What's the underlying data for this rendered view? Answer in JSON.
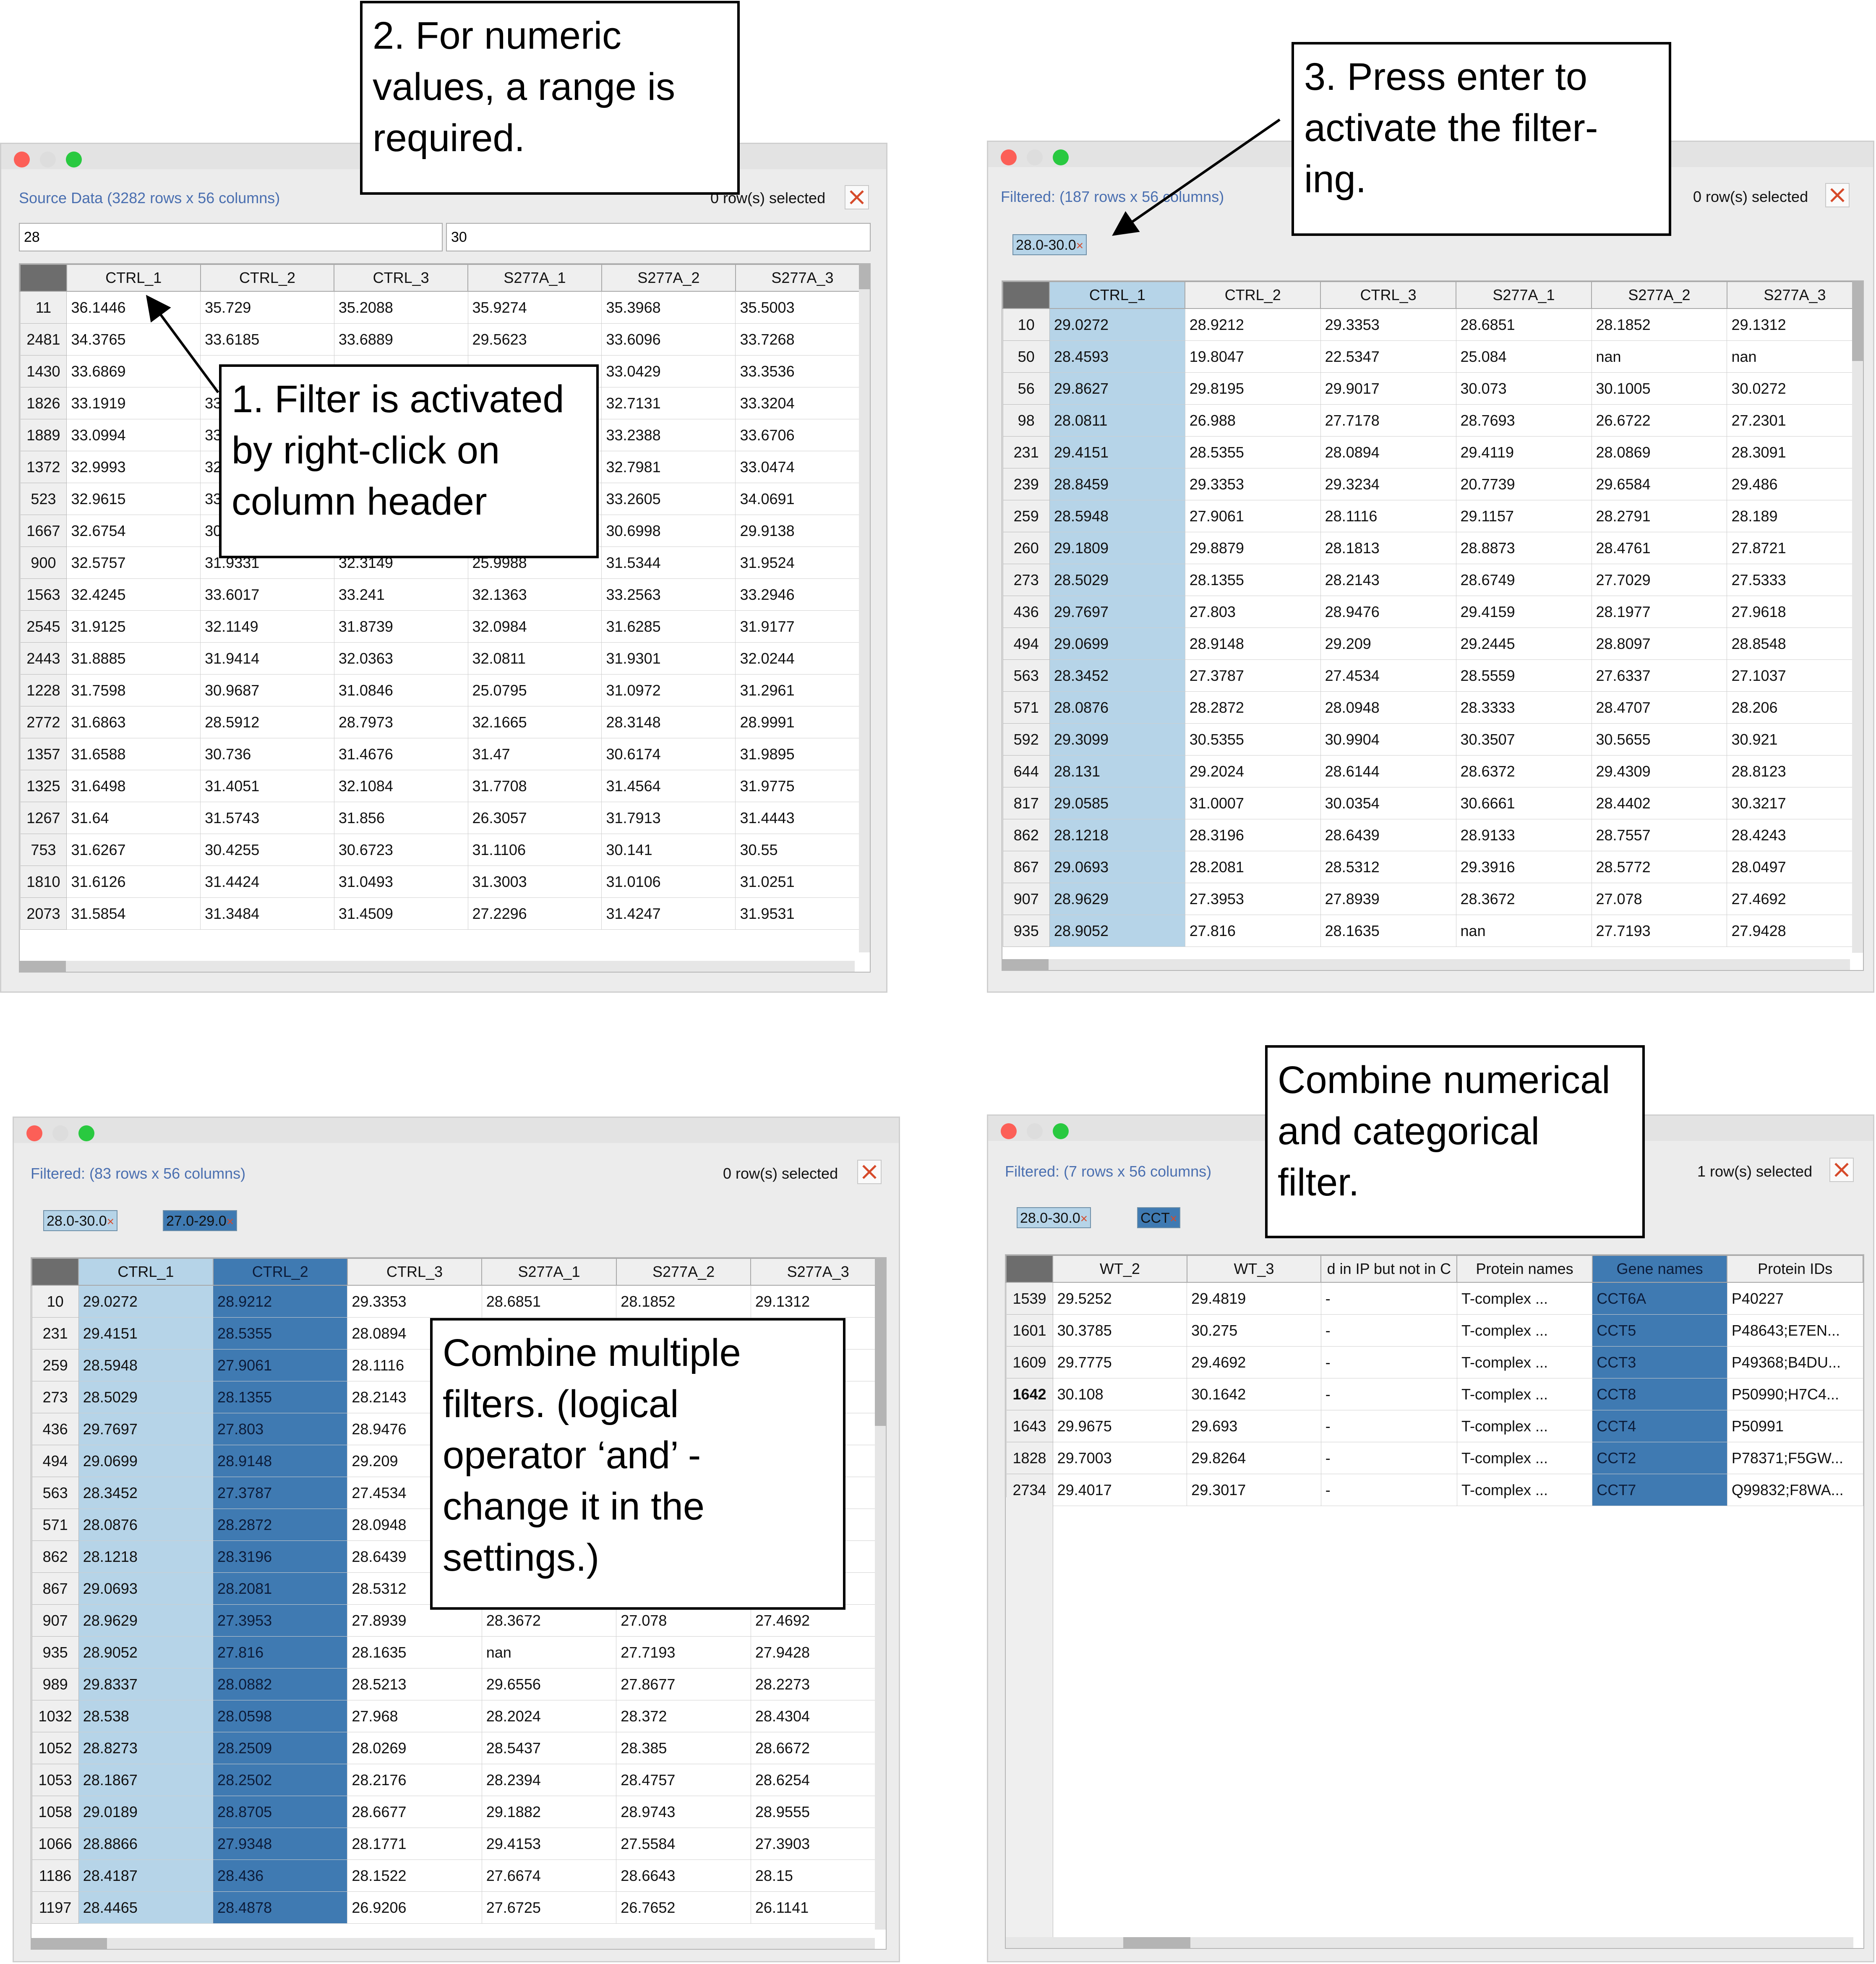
{
  "panel1": {
    "status": "Source Data (3282 rows x 56 columns)",
    "selected": "0 row(s) selected",
    "filter_min": "28",
    "filter_max": "30",
    "headers": [
      "CTRL_1",
      "CTRL_2",
      "CTRL_3",
      "S277A_1",
      "S277A_2",
      "S277A_3"
    ],
    "rows": [
      [
        "11",
        "36.1446",
        "35.729",
        "35.2088",
        "35.9274",
        "35.3968",
        "35.5003"
      ],
      [
        "2481",
        "34.3765",
        "33.6185",
        "33.6889",
        "29.5623",
        "33.6096",
        "33.7268"
      ],
      [
        "1430",
        "33.6869",
        "",
        "",
        "",
        "33.0429",
        "33.3536"
      ],
      [
        "1826",
        "33.1919",
        "33",
        "",
        "",
        "32.7131",
        "33.3204"
      ],
      [
        "1889",
        "33.0994",
        "33",
        "",
        "",
        "33.2388",
        "33.6706"
      ],
      [
        "1372",
        "32.9993",
        "32",
        "",
        "",
        "32.7981",
        "33.0474"
      ],
      [
        "523",
        "32.9615",
        "33",
        "",
        "",
        "33.2605",
        "34.0691"
      ],
      [
        "1667",
        "32.6754",
        "30",
        "",
        "",
        "30.6998",
        "29.9138"
      ],
      [
        "900",
        "32.5757",
        "31.9331",
        "32.3149",
        "25.9988",
        "31.5344",
        "31.9524"
      ],
      [
        "1563",
        "32.4245",
        "33.6017",
        "33.241",
        "32.1363",
        "33.2563",
        "33.2946"
      ],
      [
        "2545",
        "31.9125",
        "32.1149",
        "31.8739",
        "32.0984",
        "31.6285",
        "31.9177"
      ],
      [
        "2443",
        "31.8885",
        "31.9414",
        "32.0363",
        "32.0811",
        "31.9301",
        "32.0244"
      ],
      [
        "1228",
        "31.7598",
        "30.9687",
        "31.0846",
        "25.0795",
        "31.0972",
        "31.2961"
      ],
      [
        "2772",
        "31.6863",
        "28.5912",
        "28.7973",
        "32.1665",
        "28.3148",
        "28.9991"
      ],
      [
        "1357",
        "31.6588",
        "30.736",
        "31.4676",
        "31.47",
        "30.6174",
        "31.9895"
      ],
      [
        "1325",
        "31.6498",
        "31.4051",
        "32.1084",
        "31.7708",
        "31.4564",
        "31.9775"
      ],
      [
        "1267",
        "31.64",
        "31.5743",
        "31.856",
        "26.3057",
        "31.7913",
        "31.4443"
      ],
      [
        "753",
        "31.6267",
        "30.4255",
        "30.6723",
        "31.1106",
        "30.141",
        "30.55"
      ],
      [
        "1810",
        "31.6126",
        "31.4424",
        "31.0493",
        "31.3003",
        "31.0106",
        "31.0251"
      ],
      [
        "2073",
        "31.5854",
        "31.3484",
        "31.4509",
        "27.2296",
        "31.4247",
        "31.9531"
      ]
    ]
  },
  "panel2": {
    "status": "Filtered: (187 rows x 56 columns)",
    "selected": "0 row(s) selected",
    "chips": [
      "28.0-30.0"
    ],
    "headers": [
      "CTRL_1",
      "CTRL_2",
      "CTRL_3",
      "S277A_1",
      "S277A_2",
      "S277A_3"
    ],
    "rows": [
      [
        "10",
        "29.0272",
        "28.9212",
        "29.3353",
        "28.6851",
        "28.1852",
        "29.1312"
      ],
      [
        "50",
        "28.4593",
        "19.8047",
        "22.5347",
        "25.084",
        "nan",
        "nan"
      ],
      [
        "56",
        "29.8627",
        "29.8195",
        "29.9017",
        "30.073",
        "30.1005",
        "30.0272"
      ],
      [
        "98",
        "28.0811",
        "26.988",
        "27.7178",
        "28.7693",
        "26.6722",
        "27.2301"
      ],
      [
        "231",
        "29.4151",
        "28.5355",
        "28.0894",
        "29.4119",
        "28.0869",
        "28.3091"
      ],
      [
        "239",
        "28.8459",
        "29.3353",
        "29.3234",
        "20.7739",
        "29.6584",
        "29.486"
      ],
      [
        "259",
        "28.5948",
        "27.9061",
        "28.1116",
        "29.1157",
        "28.2791",
        "28.189"
      ],
      [
        "260",
        "29.1809",
        "29.8879",
        "28.1813",
        "28.8873",
        "28.4761",
        "27.8721"
      ],
      [
        "273",
        "28.5029",
        "28.1355",
        "28.2143",
        "28.6749",
        "27.7029",
        "27.5333"
      ],
      [
        "436",
        "29.7697",
        "27.803",
        "28.9476",
        "29.4159",
        "28.1977",
        "27.9618"
      ],
      [
        "494",
        "29.0699",
        "28.9148",
        "29.209",
        "29.2445",
        "28.8097",
        "28.8548"
      ],
      [
        "563",
        "28.3452",
        "27.3787",
        "27.4534",
        "28.5559",
        "27.6337",
        "27.1037"
      ],
      [
        "571",
        "28.0876",
        "28.2872",
        "28.0948",
        "28.3333",
        "28.4707",
        "28.206"
      ],
      [
        "592",
        "29.3099",
        "30.5355",
        "30.9904",
        "30.3507",
        "30.5655",
        "30.921"
      ],
      [
        "644",
        "28.131",
        "29.2024",
        "28.6144",
        "28.6372",
        "29.4309",
        "28.8123"
      ],
      [
        "817",
        "29.0585",
        "31.0007",
        "30.0354",
        "30.6661",
        "28.4402",
        "30.3217"
      ],
      [
        "862",
        "28.1218",
        "28.3196",
        "28.6439",
        "28.9133",
        "28.7557",
        "28.4243"
      ],
      [
        "867",
        "29.0693",
        "28.2081",
        "28.5312",
        "29.3916",
        "28.5772",
        "28.0497"
      ],
      [
        "907",
        "28.9629",
        "27.3953",
        "27.8939",
        "28.3672",
        "27.078",
        "27.4692"
      ],
      [
        "935",
        "28.9052",
        "27.816",
        "28.1635",
        "nan",
        "27.7193",
        "27.9428"
      ]
    ]
  },
  "panel3": {
    "status": "Filtered: (83 rows x 56 columns)",
    "selected": "0 row(s) selected",
    "chips": [
      "28.0-30.0",
      "27.0-29.0"
    ],
    "headers": [
      "CTRL_1",
      "CTRL_2",
      "CTRL_3",
      "S277A_1",
      "S277A_2",
      "S277A_3"
    ],
    "rows": [
      [
        "10",
        "29.0272",
        "28.9212",
        "29.3353",
        "28.6851",
        "28.1852",
        "29.1312"
      ],
      [
        "231",
        "29.4151",
        "28.5355",
        "28.0894",
        "",
        "",
        ""
      ],
      [
        "259",
        "28.5948",
        "27.9061",
        "28.1116",
        "",
        "",
        ""
      ],
      [
        "273",
        "28.5029",
        "28.1355",
        "28.2143",
        "",
        "",
        ""
      ],
      [
        "436",
        "29.7697",
        "27.803",
        "28.9476",
        "",
        "",
        ""
      ],
      [
        "494",
        "29.0699",
        "28.9148",
        "29.209",
        "",
        "",
        ""
      ],
      [
        "563",
        "28.3452",
        "27.3787",
        "27.4534",
        "",
        "",
        ""
      ],
      [
        "571",
        "28.0876",
        "28.2872",
        "28.0948",
        "",
        "",
        ""
      ],
      [
        "862",
        "28.1218",
        "28.3196",
        "28.6439",
        "",
        "",
        ""
      ],
      [
        "867",
        "29.0693",
        "28.2081",
        "28.5312",
        "",
        "",
        ""
      ],
      [
        "907",
        "28.9629",
        "27.3953",
        "27.8939",
        "28.3672",
        "27.078",
        "27.4692"
      ],
      [
        "935",
        "28.9052",
        "27.816",
        "28.1635",
        "nan",
        "27.7193",
        "27.9428"
      ],
      [
        "989",
        "29.8337",
        "28.0882",
        "28.5213",
        "29.6556",
        "27.8677",
        "28.2273"
      ],
      [
        "1032",
        "28.538",
        "28.0598",
        "27.968",
        "28.2024",
        "28.372",
        "28.4304"
      ],
      [
        "1052",
        "28.8273",
        "28.2509",
        "28.0269",
        "28.5437",
        "28.385",
        "28.6672"
      ],
      [
        "1053",
        "28.1867",
        "28.2502",
        "28.2176",
        "28.2394",
        "28.4757",
        "28.6254"
      ],
      [
        "1058",
        "29.0189",
        "28.8705",
        "28.6677",
        "29.1882",
        "28.9743",
        "28.9555"
      ],
      [
        "1066",
        "28.8866",
        "27.9348",
        "28.1771",
        "29.4153",
        "27.5584",
        "27.3903"
      ],
      [
        "1186",
        "28.4187",
        "28.436",
        "28.1522",
        "27.6674",
        "28.6643",
        "28.15"
      ],
      [
        "1197",
        "28.4465",
        "28.4878",
        "26.9206",
        "27.6725",
        "26.7652",
        "26.1141"
      ]
    ]
  },
  "panel4": {
    "status": "Filtered: (7 rows x 56 columns)",
    "selected": "1 row(s) selected",
    "chips": [
      "28.0-30.0",
      "CCT"
    ],
    "headers": [
      "WT_2",
      "WT_3",
      "d in IP but not in C",
      "Protein names",
      "Gene names",
      "Protein IDs"
    ],
    "rows": [
      [
        "1539",
        "29.5252",
        "29.4819",
        "-",
        "T-complex ...",
        "CCT6A",
        "P40227"
      ],
      [
        "1601",
        "30.3785",
        "30.275",
        "-",
        "T-complex ...",
        "CCT5",
        "P48643;E7EN..."
      ],
      [
        "1609",
        "29.7775",
        "29.4692",
        "-",
        "T-complex ...",
        "CCT3",
        "P49368;B4DU..."
      ],
      [
        "1642",
        "30.108",
        "30.1642",
        "-",
        "T-complex ...",
        "CCT8",
        "P50990;H7C4..."
      ],
      [
        "1643",
        "29.9675",
        "29.693",
        "-",
        "T-complex ...",
        "CCT4",
        "P50991"
      ],
      [
        "1828",
        "29.7003",
        "29.8264",
        "-",
        "T-complex ...",
        "CCT2",
        "P78371;F5GW..."
      ],
      [
        "2734",
        "29.4017",
        "29.3017",
        "-",
        "T-complex ...",
        "CCT7",
        "Q99832;F8WA..."
      ]
    ]
  },
  "callouts": {
    "c2": [
      "2. For numeric",
      "values, a range is",
      "required."
    ],
    "c1": [
      "1. Filter is activated",
      "by right-click on",
      "column header"
    ],
    "c3": [
      "3. Press enter to",
      "activate the filter-",
      "ing."
    ],
    "c4": [
      "Combine multiple",
      "filters. (logical",
      "operator ‘and’ -",
      "change it in the",
      "settings.)"
    ],
    "c5": [
      "Combine numerical",
      "and categorical",
      "filter."
    ]
  },
  "colors": {
    "filter_col_light": "#b6d4e8",
    "filter_col_dark": "#3f7ab2",
    "status_text": "#4a6fb0",
    "close_x": "#d64a2a"
  }
}
